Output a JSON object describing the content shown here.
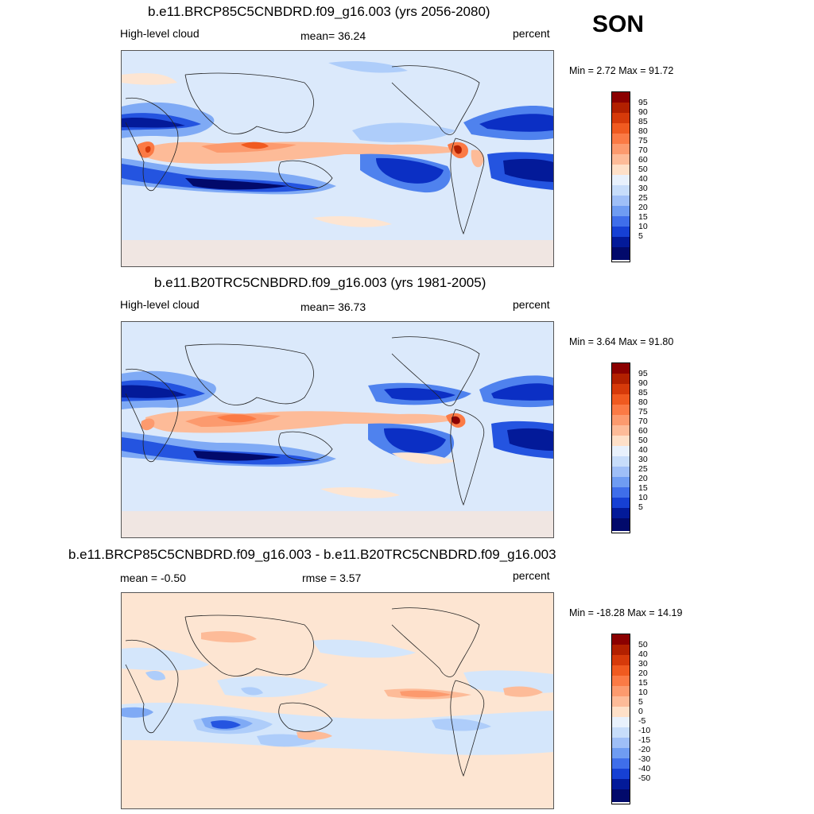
{
  "season": "SON",
  "panels": [
    {
      "title": "b.e11.BRCP85C5CNBDRD.f09_g16.003 (yrs 2056-2080)",
      "variable": "High-level cloud",
      "stat_left": "mean=  36.24",
      "stat_mid": "",
      "units": "percent",
      "minmax": "Min =   2.72 Max =  91.72",
      "colorbar_labels": [
        "95",
        "90",
        "85",
        "80",
        "75",
        "70",
        "60",
        "50",
        "40",
        "30",
        "25",
        "20",
        "15",
        "10",
        "5"
      ]
    },
    {
      "title": "b.e11.B20TRC5CNBDRD.f09_g16.003 (yrs 1981-2005)",
      "variable": "High-level cloud",
      "stat_left": "mean=  36.73",
      "stat_mid": "",
      "units": "percent",
      "minmax": "Min =   3.64 Max =  91.80",
      "colorbar_labels": [
        "95",
        "90",
        "85",
        "80",
        "75",
        "70",
        "60",
        "50",
        "40",
        "30",
        "25",
        "20",
        "15",
        "10",
        "5"
      ]
    },
    {
      "title": "b.e11.BRCP85C5CNBDRD.f09_g16.003 - b.e11.B20TRC5CNBDRD.f09_g16.003",
      "variable": "",
      "stat_left": "mean =  -0.50",
      "stat_mid": "rmse =   3.57",
      "units": "percent",
      "minmax": "Min = -18.28 Max =  14.19",
      "colorbar_labels": [
        "50",
        "40",
        "30",
        "20",
        "15",
        "10",
        "5",
        "0",
        "-5",
        "-10",
        "-15",
        "-20",
        "-30",
        "-40",
        "-50"
      ]
    }
  ],
  "colors": {
    "scale": [
      "#8b0000",
      "#b22000",
      "#d63a0a",
      "#f05a20",
      "#fb7a45",
      "#fc9a6e",
      "#fdbb98",
      "#fee0c8",
      "#f7f7ff",
      "#d4e6fb",
      "#aecdfa",
      "#7faaf5",
      "#4f82ee",
      "#2454e0",
      "#0b2fc4",
      "#031a99",
      "#020a6b"
    ],
    "light_blue": "#dbe9fb",
    "cream": "#fde5d2"
  }
}
